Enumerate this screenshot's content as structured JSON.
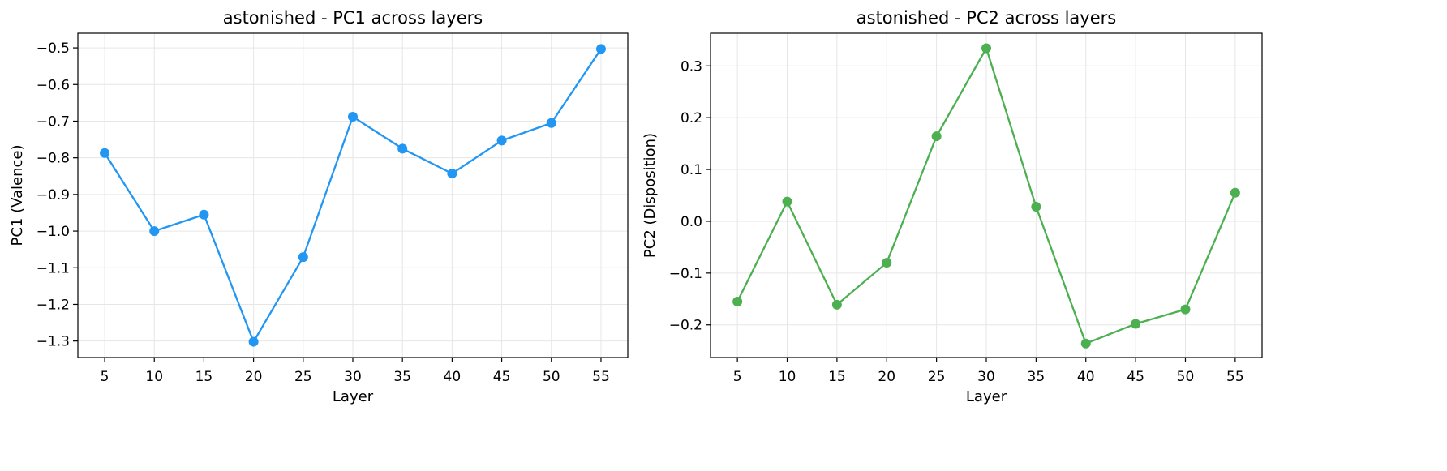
{
  "chart_data": [
    {
      "type": "line",
      "title": "astonished - PC1 across layers",
      "xlabel": "Layer",
      "ylabel": "PC1 (Valence)",
      "x": [
        5,
        10,
        15,
        20,
        25,
        30,
        35,
        40,
        45,
        50,
        55
      ],
      "xticks": [
        "5",
        "10",
        "15",
        "20",
        "25",
        "30",
        "35",
        "40",
        "45",
        "50",
        "55"
      ],
      "yticks": [
        "−0.5",
        "−0.6",
        "−0.7",
        "−0.8",
        "−0.9",
        "−1.0",
        "−1.1",
        "−1.2",
        "−1.3"
      ],
      "ytick_values": [
        -0.5,
        -0.6,
        -0.7,
        -0.8,
        -0.9,
        -1.0,
        -1.1,
        -1.2,
        -1.3
      ],
      "xlim": [
        2.3,
        57.7
      ],
      "ylim": [
        -1.345,
        -0.46
      ],
      "grid": true,
      "series": [
        {
          "values": [
            -0.787,
            -1.0,
            -0.955,
            -1.302,
            -1.071,
            -0.688,
            -0.775,
            -0.843,
            -0.753,
            -0.705,
            -0.503
          ],
          "color": "#2196F3"
        }
      ]
    },
    {
      "type": "line",
      "title": "astonished - PC2 across layers",
      "xlabel": "Layer",
      "ylabel": "PC2 (Disposition)",
      "x": [
        5,
        10,
        15,
        20,
        25,
        30,
        35,
        40,
        45,
        50,
        55
      ],
      "xticks": [
        "5",
        "10",
        "15",
        "20",
        "25",
        "30",
        "35",
        "40",
        "45",
        "50",
        "55"
      ],
      "yticks": [
        "0.3",
        "0.2",
        "0.1",
        "0.0",
        "−0.1",
        "−0.2"
      ],
      "ytick_values": [
        0.3,
        0.2,
        0.1,
        0.0,
        -0.1,
        -0.2
      ],
      "xlim": [
        2.3,
        57.7
      ],
      "ylim": [
        -0.263,
        0.363
      ],
      "grid": true,
      "series": [
        {
          "values": [
            -0.155,
            0.038,
            -0.161,
            -0.08,
            0.164,
            0.334,
            0.028,
            -0.236,
            -0.198,
            -0.17,
            0.055
          ],
          "color": "#4CAF50"
        }
      ]
    }
  ]
}
